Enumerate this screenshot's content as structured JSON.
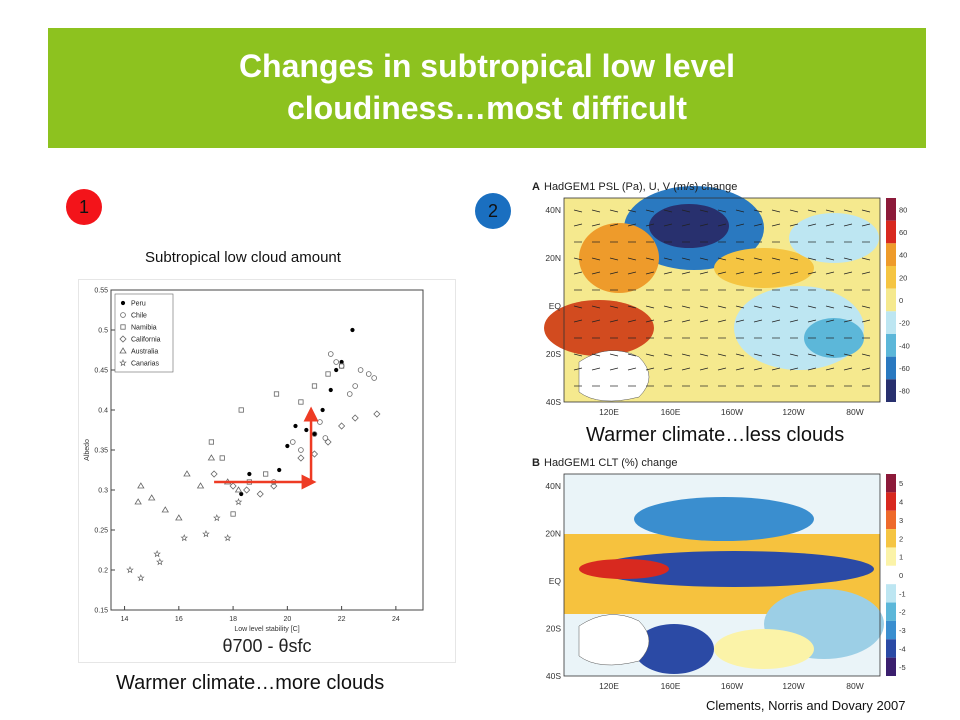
{
  "slide": {
    "title": "Changes in subtropical low level\ncloudiness…most difficult",
    "badge_1": "1",
    "badge_2": "2",
    "scatter_title": "Subtropical low cloud amount",
    "caption_left": "Warmer climate…more clouds",
    "caption_right_top": "Warmer climate…less clouds",
    "citation": "Clements, Norris and Dovary 2007",
    "colors": {
      "title_bar": "#8dc21f",
      "badge_1": "#f3141a",
      "badge_2": "#1a6fc0",
      "arrow": "#ee3b24"
    }
  },
  "scatter": {
    "ylabel": "Albedo",
    "xlabel": "Low level stability [C]",
    "xlabel_formula": "θ700 - θsfc",
    "x_ticks": [
      "14",
      "16",
      "18",
      "20",
      "22",
      "24"
    ],
    "y_ticks": [
      "0.15",
      "0.2",
      "0.25",
      "0.3",
      "0.35",
      "0.4",
      "0.45",
      "0.5",
      "0.55"
    ],
    "legend": [
      "Peru",
      "Chile",
      "Namibia",
      "California",
      "Australia",
      "Canarias"
    ]
  },
  "chart_data": {
    "type": "scatter",
    "title": "",
    "xlabel": "Low level stability [C]",
    "ylabel": "Albedo",
    "xlim": [
      13.5,
      25
    ],
    "ylim": [
      0.15,
      0.55
    ],
    "series": [
      {
        "name": "Peru",
        "marker": "dot",
        "x": [
          18.3,
          18.6,
          19.7,
          20,
          20.3,
          20.7,
          21,
          21.3,
          21.6,
          21.8,
          22,
          22.4
        ],
        "y": [
          0.295,
          0.32,
          0.325,
          0.355,
          0.38,
          0.375,
          0.37,
          0.4,
          0.425,
          0.45,
          0.46,
          0.5
        ]
      },
      {
        "name": "Chile",
        "marker": "circle",
        "x": [
          19.5,
          20.2,
          20.5,
          21,
          21.2,
          21.6,
          21.8,
          22,
          22.3,
          22.5,
          22.7,
          23,
          23.2,
          21.4
        ],
        "y": [
          0.31,
          0.36,
          0.35,
          0.37,
          0.385,
          0.47,
          0.46,
          0.455,
          0.42,
          0.43,
          0.45,
          0.445,
          0.44,
          0.365
        ]
      },
      {
        "name": "Namibia",
        "marker": "square",
        "x": [
          17.2,
          17.6,
          18,
          18.3,
          18.6,
          19.2,
          19.6,
          20.5,
          21,
          21.5,
          22
        ],
        "y": [
          0.36,
          0.34,
          0.27,
          0.4,
          0.31,
          0.32,
          0.42,
          0.41,
          0.43,
          0.445,
          0.455
        ]
      },
      {
        "name": "California",
        "marker": "diamond",
        "x": [
          17.3,
          18,
          18.5,
          19,
          19.5,
          20.5,
          21,
          21.5,
          22,
          22.5,
          23.3
        ],
        "y": [
          0.32,
          0.305,
          0.3,
          0.295,
          0.305,
          0.34,
          0.345,
          0.36,
          0.38,
          0.39,
          0.395
        ]
      },
      {
        "name": "Australia",
        "marker": "triangle",
        "x": [
          14.5,
          14.6,
          15,
          15.5,
          16,
          16.3,
          16.8,
          17.2,
          17.8,
          18.2
        ],
        "y": [
          0.285,
          0.305,
          0.29,
          0.275,
          0.265,
          0.32,
          0.305,
          0.34,
          0.31,
          0.3
        ]
      },
      {
        "name": "Canarias",
        "marker": "star",
        "x": [
          14.2,
          14.6,
          15.2,
          15.3,
          16.2,
          17,
          17.4,
          17.8,
          18.2
        ],
        "y": [
          0.2,
          0.19,
          0.22,
          0.21,
          0.24,
          0.245,
          0.265,
          0.24,
          0.285
        ]
      }
    ]
  },
  "map_a": {
    "title": "HadGEM1 PSL (Pa), U, V (m/s) change",
    "panel_letter": "A",
    "lat_labels": [
      "40N",
      "20N",
      "EQ",
      "20S",
      "40S"
    ],
    "lon_labels": [
      "120E",
      "160E",
      "160W",
      "120W",
      "80W"
    ],
    "colorbar_ticks": [
      "80",
      "60",
      "40",
      "20",
      "0",
      "-20",
      "-40",
      "-60",
      "-80"
    ]
  },
  "map_b": {
    "title": "HadGEM1 CLT (%) change",
    "panel_letter": "B",
    "lat_labels": [
      "40N",
      "20N",
      "EQ",
      "20S",
      "40S"
    ],
    "lon_labels": [
      "120E",
      "160E",
      "160W",
      "120W",
      "80W"
    ],
    "colorbar_ticks": [
      "5",
      "4",
      "3",
      "2",
      "1",
      "0",
      "-1",
      "-2",
      "-3",
      "-4",
      "-5"
    ]
  }
}
